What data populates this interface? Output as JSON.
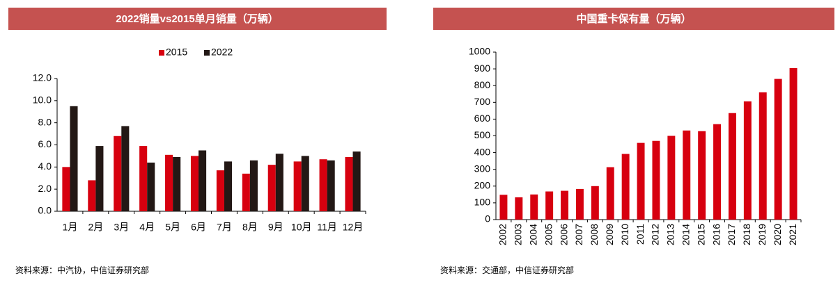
{
  "chart_data": [
    {
      "type": "bar",
      "title": "2022销量vs2015单月销量（万辆）",
      "categories": [
        "1月",
        "2月",
        "3月",
        "4月",
        "5月",
        "6月",
        "7月",
        "8月",
        "9月",
        "10月",
        "11月",
        "12月"
      ],
      "series": [
        {
          "name": "2015",
          "color": "#d7000f",
          "values": [
            4.0,
            2.8,
            6.8,
            5.9,
            5.1,
            5.0,
            3.7,
            3.4,
            4.2,
            4.5,
            4.7,
            4.9
          ]
        },
        {
          "name": "2022",
          "color": "#231815",
          "values": [
            9.5,
            5.9,
            7.7,
            4.4,
            4.9,
            5.5,
            4.5,
            4.6,
            5.2,
            5.0,
            4.6,
            5.4
          ]
        }
      ],
      "ylim": [
        0,
        12
      ],
      "yticks": [
        {
          "value": 0,
          "label": "0.0"
        },
        {
          "value": 2,
          "label": "2.0"
        },
        {
          "value": 4,
          "label": "4.0"
        },
        {
          "value": 6,
          "label": "6.0"
        },
        {
          "value": 8,
          "label": "8.0"
        },
        {
          "value": 10,
          "label": "10.0"
        },
        {
          "value": 12,
          "label": "12.0"
        }
      ],
      "legend": "top",
      "source": "资料来源：中汽协，中信证券研究部"
    },
    {
      "type": "bar",
      "title": "中国重卡保有量（万辆）",
      "categories": [
        "2002",
        "2003",
        "2004",
        "2005",
        "2006",
        "2007",
        "2008",
        "2009",
        "2010",
        "2011",
        "2012",
        "2013",
        "2014",
        "2015",
        "2016",
        "2017",
        "2018",
        "2019",
        "2020",
        "2021"
      ],
      "values": [
        148,
        133,
        150,
        168,
        172,
        183,
        200,
        313,
        392,
        458,
        470,
        500,
        532,
        528,
        570,
        636,
        706,
        760,
        840,
        905
      ],
      "color": "#d7000f",
      "ylim": [
        0,
        1000
      ],
      "yticks": [
        0,
        100,
        200,
        300,
        400,
        500,
        600,
        700,
        800,
        900,
        1000
      ],
      "source": "资料来源：交通部，中信证券研究部"
    }
  ]
}
